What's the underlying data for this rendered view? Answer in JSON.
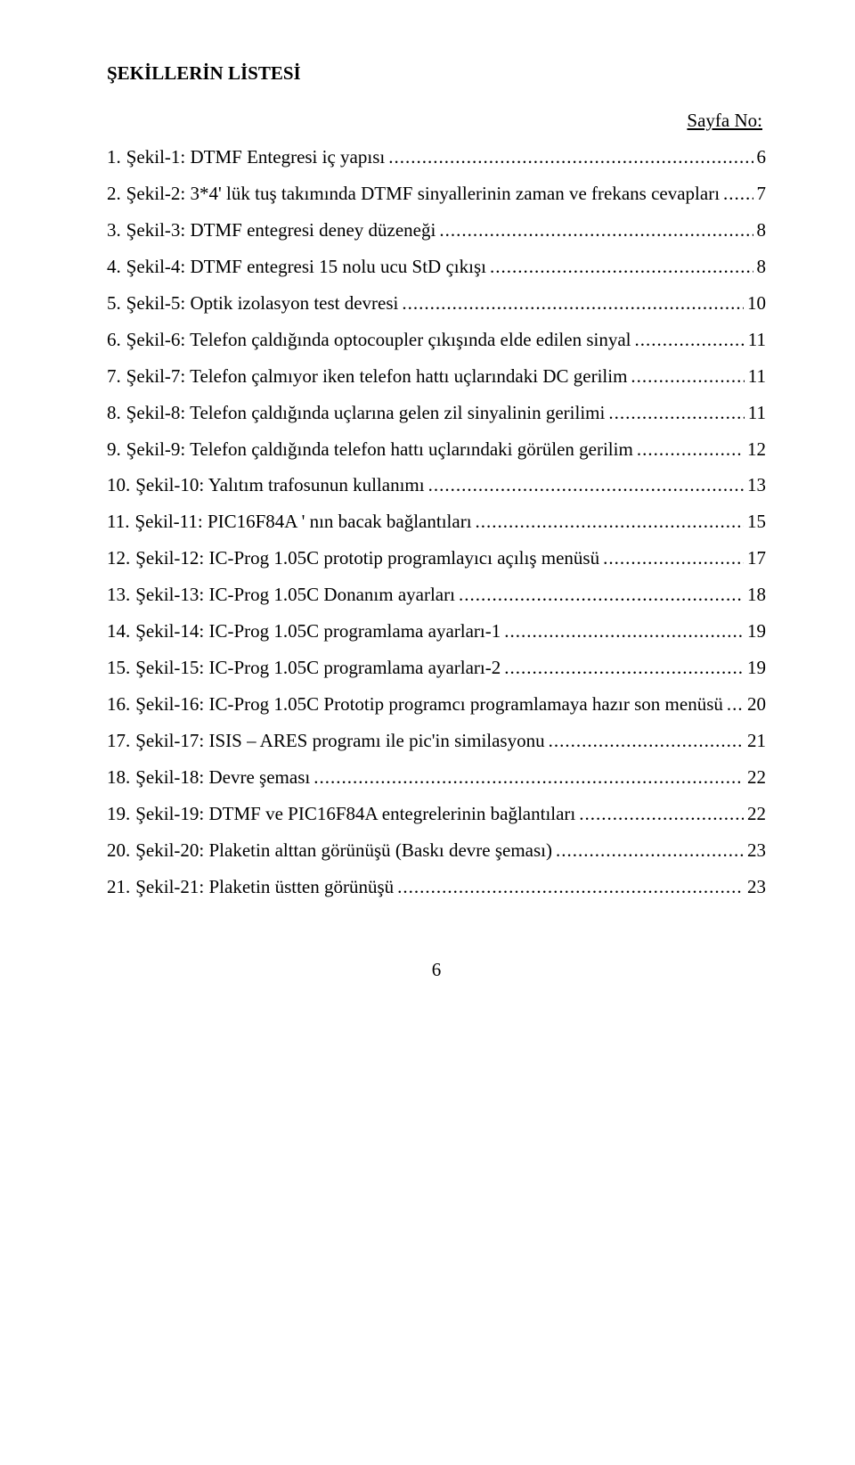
{
  "title": "ŞEKİLLERİN LİSTESİ",
  "sayfa_no_label": "Sayfa No:",
  "footer_page": "6",
  "entries": [
    {
      "num": "1.",
      "text": "Şekil-1: DTMF Entegresi iç yapısı",
      "pg": "6"
    },
    {
      "num": "2.",
      "text": "Şekil-2: 3*4' lük tuş takımında DTMF sinyallerinin zaman ve frekans cevapları",
      "pg": "7"
    },
    {
      "num": "3.",
      "text": "Şekil-3: DTMF entegresi deney düzeneği",
      "pg": "8"
    },
    {
      "num": "4.",
      "text": "Şekil-4: DTMF entegresi 15 nolu ucu StD çıkışı",
      "pg": "8"
    },
    {
      "num": "5.",
      "text": "Şekil-5: Optik izolasyon test devresi",
      "pg": "10"
    },
    {
      "num": "6.",
      "text": "Şekil-6: Telefon çaldığında optocoupler çıkışında elde edilen sinyal",
      "pg": "11"
    },
    {
      "num": "7.",
      "text": "Şekil-7: Telefon çalmıyor iken telefon hattı uçlarındaki DC gerilim",
      "pg": "11"
    },
    {
      "num": "8.",
      "text": "Şekil-8: Telefon çaldığında uçlarına gelen zil sinyalinin gerilimi",
      "pg": "11"
    },
    {
      "num": "9.",
      "text": "Şekil-9: Telefon çaldığında telefon hattı uçlarındaki görülen gerilim",
      "pg": "12"
    },
    {
      "num": "10.",
      "text": "Şekil-10: Yalıtım trafosunun kullanımı",
      "pg": "13"
    },
    {
      "num": "11.",
      "text": "Şekil-11: PIC16F84A ' nın bacak bağlantıları",
      "pg": "15"
    },
    {
      "num": "12.",
      "text": "Şekil-12: IC-Prog 1.05C prototip programlayıcı açılış menüsü",
      "pg": "17"
    },
    {
      "num": "13.",
      "text": "Şekil-13: IC-Prog 1.05C Donanım ayarları",
      "pg": "18"
    },
    {
      "num": "14.",
      "text": "Şekil-14: IC-Prog 1.05C programlama ayarları-1",
      "pg": "19"
    },
    {
      "num": "15.",
      "text": "Şekil-15: IC-Prog 1.05C programlama ayarları-2",
      "pg": "19"
    },
    {
      "num": "16.",
      "text": "Şekil-16: IC-Prog 1.05C Prototip programcı programlamaya hazır son menüsü",
      "pg": "20"
    },
    {
      "num": "17.",
      "text": "Şekil-17: ISIS – ARES programı ile pic'in similasyonu",
      "pg": "21"
    },
    {
      "num": "18.",
      "text": "Şekil-18: Devre şeması",
      "pg": "22"
    },
    {
      "num": "19.",
      "text": "Şekil-19: DTMF ve PIC16F84A entegrelerinin bağlantıları",
      "pg": "22"
    },
    {
      "num": "20.",
      "text": "Şekil-20: Plaketin alttan görünüşü (Baskı devre şeması)",
      "pg": "23"
    },
    {
      "num": "21.",
      "text": "Şekil-21: Plaketin üstten görünüşü",
      "pg": "23"
    }
  ]
}
